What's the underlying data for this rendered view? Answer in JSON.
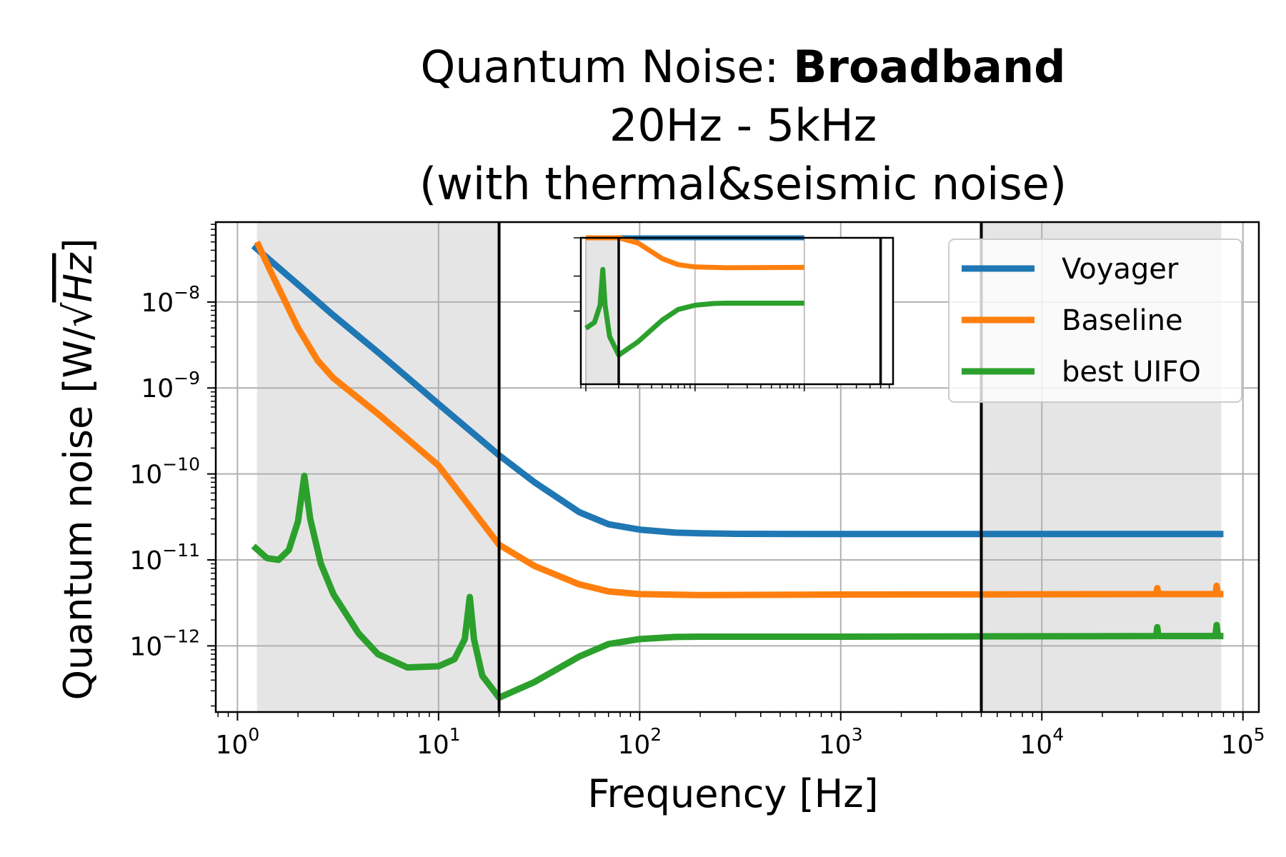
{
  "chart_data": {
    "type": "line",
    "title": {
      "prefix": "Quantum Noise: ",
      "bold": "Broadband",
      "line2": "20Hz - 5kHz",
      "line3": "(with thermal&seismic noise)"
    },
    "xlabel": "Frequency [Hz]",
    "ylabel": "Quantum noise [W/√Hz]",
    "ylabel_parts": {
      "main": "Quantum noise [W/",
      "sqrt": "Hz",
      "close": "]"
    },
    "xscale": "log",
    "yscale": "log",
    "xlim": [
      0.78,
      120000
    ],
    "ylim": [
      1.7e-13,
      8.5e-08
    ],
    "grid": true,
    "legend_location": "upper right",
    "x_ticks": [
      {
        "value": 1,
        "base": "10",
        "exp": "0"
      },
      {
        "value": 10,
        "base": "10",
        "exp": "1"
      },
      {
        "value": 100,
        "base": "10",
        "exp": "2"
      },
      {
        "value": 1000,
        "base": "10",
        "exp": "3"
      },
      {
        "value": 10000,
        "base": "10",
        "exp": "4"
      },
      {
        "value": 100000,
        "base": "10",
        "exp": "5"
      }
    ],
    "y_ticks": [
      {
        "value": 1e-12,
        "base": "10",
        "exp": "−12"
      },
      {
        "value": 1e-11,
        "base": "10",
        "exp": "−11"
      },
      {
        "value": 1e-10,
        "base": "10",
        "exp": "−10"
      },
      {
        "value": 1e-09,
        "base": "10",
        "exp": "−9"
      },
      {
        "value": 1e-08,
        "base": "10",
        "exp": "−8"
      }
    ],
    "shaded_regions": [
      {
        "x_from": 1.25,
        "x_to": 20,
        "color": "#e5e5e5"
      },
      {
        "x_from": 5000,
        "x_to": 78000,
        "color": "#e5e5e5"
      }
    ],
    "vertical_lines": [
      20,
      5000
    ],
    "series": [
      {
        "name": "Voyager",
        "color": "#1f77b4",
        "points": [
          [
            1.2,
            4.5e-08
          ],
          [
            2,
            1.6e-08
          ],
          [
            3,
            7e-09
          ],
          [
            5,
            2.6e-09
          ],
          [
            10,
            6.5e-10
          ],
          [
            20,
            1.65e-10
          ],
          [
            30,
            8e-11
          ],
          [
            50,
            3.6e-11
          ],
          [
            70,
            2.6e-11
          ],
          [
            100,
            2.25e-11
          ],
          [
            150,
            2.08e-11
          ],
          [
            200,
            2.04e-11
          ],
          [
            300,
            2.01e-11
          ],
          [
            1000,
            2e-11
          ],
          [
            80000,
            2e-11
          ]
        ]
      },
      {
        "name": "Baseline",
        "color": "#ff7f0e",
        "points": [
          [
            1.25,
            5e-08
          ],
          [
            1.5,
            2e-08
          ],
          [
            2,
            5e-09
          ],
          [
            2.5,
            2.1e-09
          ],
          [
            3,
            1.3e-09
          ],
          [
            5,
            5e-10
          ],
          [
            10,
            1.25e-10
          ],
          [
            20,
            1.5e-11
          ],
          [
            30,
            8.5e-12
          ],
          [
            50,
            5.2e-12
          ],
          [
            70,
            4.3e-12
          ],
          [
            100,
            4e-12
          ],
          [
            200,
            3.9e-12
          ],
          [
            1000,
            3.95e-12
          ],
          [
            37000,
            4e-12
          ],
          [
            37500,
            4.7e-12
          ],
          [
            38000,
            4e-12
          ],
          [
            73000,
            4e-12
          ],
          [
            74000,
            5e-12
          ],
          [
            75000,
            4e-12
          ],
          [
            80000,
            4e-12
          ]
        ]
      },
      {
        "name": "best UIFO",
        "color": "#2ca02c",
        "points": [
          [
            1.2,
            1.45e-11
          ],
          [
            1.4,
            1.05e-11
          ],
          [
            1.6,
            1e-11
          ],
          [
            1.8,
            1.3e-11
          ],
          [
            2,
            2.8e-11
          ],
          [
            2.15,
            9.5e-11
          ],
          [
            2.3,
            3e-11
          ],
          [
            2.6,
            9e-12
          ],
          [
            3,
            4e-12
          ],
          [
            4,
            1.4e-12
          ],
          [
            5,
            8e-13
          ],
          [
            7,
            5.6e-13
          ],
          [
            10,
            5.8e-13
          ],
          [
            12,
            7e-13
          ],
          [
            13.5,
            1.2e-12
          ],
          [
            14.3,
            3.7e-12
          ],
          [
            15,
            1.2e-12
          ],
          [
            16.5,
            4.5e-13
          ],
          [
            20,
            2.5e-13
          ],
          [
            30,
            3.8e-13
          ],
          [
            50,
            7.5e-13
          ],
          [
            70,
            1.05e-12
          ],
          [
            100,
            1.2e-12
          ],
          [
            150,
            1.27e-12
          ],
          [
            200,
            1.28e-12
          ],
          [
            1000,
            1.28e-12
          ],
          [
            37000,
            1.3e-12
          ],
          [
            37500,
            1.65e-12
          ],
          [
            38000,
            1.3e-12
          ],
          [
            73000,
            1.3e-12
          ],
          [
            74000,
            1.75e-12
          ],
          [
            75000,
            1.3e-12
          ],
          [
            80000,
            1.3e-12
          ]
        ]
      }
    ],
    "inset": {
      "xlim": [
        9,
        6500
      ],
      "ylim": [
        1e-13,
        1e-11
      ],
      "xscale": "log",
      "yscale": "log",
      "shaded_regions": [
        {
          "x_from": 10,
          "x_to": 20
        }
      ],
      "vertical_lines": [
        20,
        5000
      ]
    }
  }
}
